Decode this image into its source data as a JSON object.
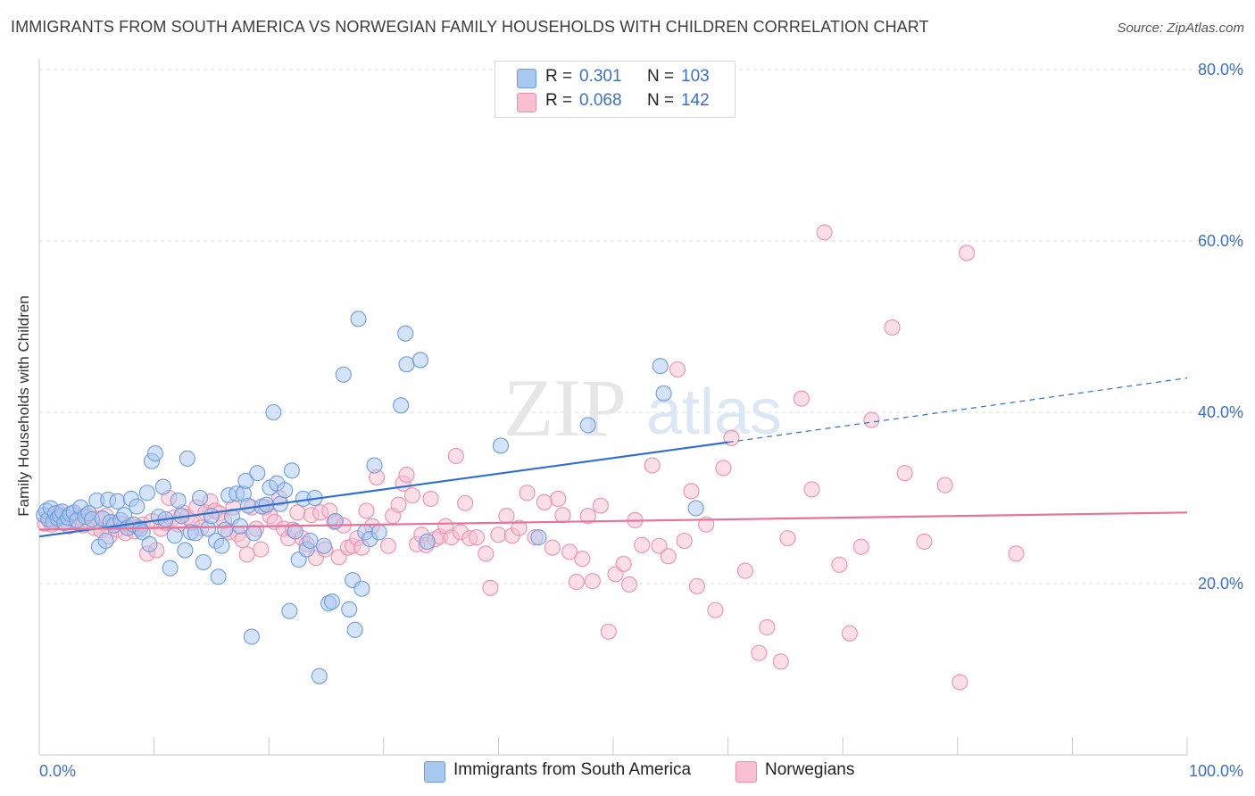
{
  "header": {
    "title": "IMMIGRANTS FROM SOUTH AMERICA VS NORWEGIAN FAMILY HOUSEHOLDS WITH CHILDREN CORRELATION CHART",
    "source": "Source: ZipAtlas.com"
  },
  "watermark": {
    "zip": "ZIP",
    "atlas": "atlas"
  },
  "legend": {
    "r_label": "R =",
    "n_label": "N =",
    "series": [
      {
        "r": "0.301",
        "n": "103"
      },
      {
        "r": "0.068",
        "n": "142"
      }
    ]
  },
  "bottom_legend": {
    "blue_label": "Immigrants from South America",
    "pink_label": "Norwegians"
  },
  "colors": {
    "blue_fill": "#a9c8ef",
    "blue_stroke": "#6b9de0",
    "blue_line": "#2f6fd1",
    "pink_fill": "#f7bfd0",
    "pink_stroke": "#ee8fae",
    "pink_line": "#e8739a",
    "tick_text": "#3a6fd0",
    "grid": "#dddddd"
  },
  "chart_data": {
    "type": "scatter",
    "title": "IMMIGRANTS FROM SOUTH AMERICA VS NORWEGIAN FAMILY HOUSEHOLDS WITH CHILDREN CORRELATION CHART",
    "xlabel": "",
    "ylabel": "Family Households with Children",
    "xlim": [
      0,
      100
    ],
    "ylim": [
      0,
      80
    ],
    "x_tick_labels": [
      "0.0%",
      "100.0%"
    ],
    "y_ticks": [
      20,
      40,
      60,
      80
    ],
    "y_tick_labels": [
      "20.0%",
      "40.0%",
      "60.0%",
      "80.0%"
    ],
    "grid": "horizontal dashed",
    "legend_placement": "top-center",
    "series": [
      {
        "name": "Immigrants from South America",
        "color": "#a9c8ef",
        "trend": {
          "x": [
            0,
            60
          ],
          "y": [
            25.5,
            36.5
          ],
          "extended_to": {
            "x": 100,
            "y": 44.0
          }
        },
        "points": [
          [
            0.4,
            28.0
          ],
          [
            0.6,
            28.5
          ],
          [
            0.8,
            27.5
          ],
          [
            1.0,
            28.8
          ],
          [
            1.2,
            27.2
          ],
          [
            1.4,
            28.2
          ],
          [
            1.6,
            27.6
          ],
          [
            1.8,
            27.9
          ],
          [
            2.0,
            28.4
          ],
          [
            2.2,
            27.1
          ],
          [
            2.5,
            27.7
          ],
          [
            2.7,
            28.1
          ],
          [
            3.0,
            28.3
          ],
          [
            3.3,
            27.4
          ],
          [
            3.6,
            28.9
          ],
          [
            4.0,
            27.8
          ],
          [
            4.3,
            28.2
          ],
          [
            4.6,
            27.5
          ],
          [
            5.0,
            29.7
          ],
          [
            5.2,
            24.3
          ],
          [
            5.5,
            27.6
          ],
          [
            5.8,
            25.0
          ],
          [
            6.0,
            29.8
          ],
          [
            6.2,
            27.2
          ],
          [
            6.5,
            26.8
          ],
          [
            6.8,
            29.6
          ],
          [
            7.1,
            27.4
          ],
          [
            7.4,
            28.0
          ],
          [
            7.7,
            26.5
          ],
          [
            8.0,
            29.9
          ],
          [
            8.2,
            26.9
          ],
          [
            8.5,
            29.0
          ],
          [
            8.8,
            26.4
          ],
          [
            9.0,
            26.0
          ],
          [
            9.4,
            30.6
          ],
          [
            9.6,
            24.6
          ],
          [
            9.8,
            34.3
          ],
          [
            10.1,
            35.2
          ],
          [
            10.4,
            27.8
          ],
          [
            10.8,
            31.3
          ],
          [
            11.0,
            27.5
          ],
          [
            11.4,
            21.8
          ],
          [
            11.8,
            25.6
          ],
          [
            12.1,
            29.7
          ],
          [
            12.4,
            27.9
          ],
          [
            12.7,
            23.9
          ],
          [
            12.9,
            34.6
          ],
          [
            13.2,
            26.0
          ],
          [
            13.6,
            25.9
          ],
          [
            14.0,
            30.0
          ],
          [
            14.3,
            22.5
          ],
          [
            14.7,
            26.4
          ],
          [
            15.0,
            27.9
          ],
          [
            15.4,
            25.0
          ],
          [
            15.6,
            20.8
          ],
          [
            15.9,
            24.4
          ],
          [
            16.2,
            26.3
          ],
          [
            16.5,
            30.3
          ],
          [
            16.8,
            27.8
          ],
          [
            17.2,
            30.5
          ],
          [
            17.5,
            26.7
          ],
          [
            17.8,
            30.5
          ],
          [
            18.0,
            32.0
          ],
          [
            18.2,
            29.1
          ],
          [
            18.5,
            13.8
          ],
          [
            18.7,
            25.9
          ],
          [
            19.0,
            32.9
          ],
          [
            19.4,
            29.0
          ],
          [
            19.8,
            29.2
          ],
          [
            20.1,
            31.2
          ],
          [
            20.4,
            40.0
          ],
          [
            20.7,
            31.7
          ],
          [
            21.0,
            29.3
          ],
          [
            21.4,
            30.9
          ],
          [
            21.8,
            16.8
          ],
          [
            22.0,
            33.2
          ],
          [
            22.3,
            26.1
          ],
          [
            22.6,
            22.8
          ],
          [
            23.0,
            29.9
          ],
          [
            23.3,
            24.0
          ],
          [
            23.6,
            25.0
          ],
          [
            24.0,
            30.0
          ],
          [
            24.4,
            9.2
          ],
          [
            24.8,
            24.4
          ],
          [
            25.2,
            17.7
          ],
          [
            25.5,
            17.9
          ],
          [
            25.8,
            27.3
          ],
          [
            26.5,
            44.4
          ],
          [
            27.0,
            17.0
          ],
          [
            27.3,
            20.4
          ],
          [
            27.5,
            14.6
          ],
          [
            27.8,
            50.9
          ],
          [
            28.1,
            19.4
          ],
          [
            28.4,
            26.0
          ],
          [
            28.8,
            25.2
          ],
          [
            29.2,
            33.8
          ],
          [
            29.6,
            26.0
          ],
          [
            31.5,
            40.8
          ],
          [
            31.9,
            49.2
          ],
          [
            32.0,
            45.6
          ],
          [
            33.2,
            46.1
          ],
          [
            33.8,
            24.9
          ],
          [
            40.2,
            36.1
          ],
          [
            43.5,
            25.4
          ],
          [
            47.8,
            38.5
          ],
          [
            54.1,
            45.4
          ],
          [
            54.4,
            42.2
          ],
          [
            57.2,
            28.8
          ]
        ]
      },
      {
        "name": "Norwegians",
        "color": "#f7bfd0",
        "trend": {
          "x": [
            0,
            100
          ],
          "y": [
            26.3,
            28.3
          ]
        },
        "points": [
          [
            0.5,
            27.0
          ],
          [
            0.8,
            27.9
          ],
          [
            1.1,
            26.9
          ],
          [
            1.4,
            27.4
          ],
          [
            1.7,
            28.3
          ],
          [
            2.0,
            27.1
          ],
          [
            2.3,
            27.8
          ],
          [
            2.6,
            26.7
          ],
          [
            2.9,
            28.1
          ],
          [
            3.2,
            27.3
          ],
          [
            3.5,
            27.7
          ],
          [
            3.8,
            26.8
          ],
          [
            4.1,
            28.0
          ],
          [
            4.4,
            27.2
          ],
          [
            4.8,
            26.5
          ],
          [
            5.1,
            27.6
          ],
          [
            5.4,
            26.2
          ],
          [
            5.8,
            27.9
          ],
          [
            6.1,
            25.5
          ],
          [
            6.4,
            27.1
          ],
          [
            6.8,
            26.3
          ],
          [
            7.2,
            27.0
          ],
          [
            7.5,
            25.9
          ],
          [
            7.9,
            26.8
          ],
          [
            8.3,
            26.1
          ],
          [
            8.6,
            26.6
          ],
          [
            9.0,
            26.9
          ],
          [
            9.4,
            23.5
          ],
          [
            9.8,
            27.3
          ],
          [
            10.2,
            23.9
          ],
          [
            10.6,
            26.4
          ],
          [
            11.0,
            27.1
          ],
          [
            11.3,
            30.0
          ],
          [
            11.7,
            27.7
          ],
          [
            12.1,
            26.9
          ],
          [
            12.5,
            28.3
          ],
          [
            12.9,
            27.8
          ],
          [
            13.3,
            27.1
          ],
          [
            13.7,
            28.9
          ],
          [
            14.1,
            26.5
          ],
          [
            14.5,
            28.3
          ],
          [
            14.9,
            29.6
          ],
          [
            15.3,
            28.5
          ],
          [
            15.7,
            28.2
          ],
          [
            16.1,
            27.3
          ],
          [
            16.5,
            26.0
          ],
          [
            16.9,
            28.9
          ],
          [
            17.3,
            25.8
          ],
          [
            17.7,
            25.1
          ],
          [
            18.1,
            23.4
          ],
          [
            18.5,
            28.9
          ],
          [
            18.9,
            26.4
          ],
          [
            19.3,
            24.0
          ],
          [
            19.7,
            28.9
          ],
          [
            20.1,
            27.9
          ],
          [
            20.5,
            27.2
          ],
          [
            20.9,
            30.0
          ],
          [
            21.3,
            26.4
          ],
          [
            21.7,
            25.3
          ],
          [
            22.1,
            26.3
          ],
          [
            22.5,
            28.3
          ],
          [
            22.9,
            25.3
          ],
          [
            23.3,
            24.6
          ],
          [
            23.7,
            28.0
          ],
          [
            24.1,
            23.0
          ],
          [
            24.5,
            28.3
          ],
          [
            24.9,
            24.0
          ],
          [
            25.3,
            28.5
          ],
          [
            25.7,
            27.2
          ],
          [
            26.1,
            23.1
          ],
          [
            26.5,
            26.8
          ],
          [
            26.9,
            24.2
          ],
          [
            27.3,
            24.4
          ],
          [
            27.7,
            25.3
          ],
          [
            28.1,
            24.2
          ],
          [
            28.5,
            28.5
          ],
          [
            29.0,
            26.7
          ],
          [
            29.4,
            32.4
          ],
          [
            30.4,
            24.4
          ],
          [
            30.8,
            27.9
          ],
          [
            31.3,
            29.2
          ],
          [
            31.7,
            31.7
          ],
          [
            32.0,
            32.7
          ],
          [
            32.5,
            30.3
          ],
          [
            32.9,
            24.6
          ],
          [
            33.3,
            25.7
          ],
          [
            33.7,
            24.5
          ],
          [
            34.1,
            29.9
          ],
          [
            34.5,
            25.2
          ],
          [
            34.9,
            25.5
          ],
          [
            35.4,
            26.7
          ],
          [
            35.9,
            25.4
          ],
          [
            36.3,
            34.9
          ],
          [
            36.7,
            26.0
          ],
          [
            37.1,
            29.4
          ],
          [
            37.5,
            25.3
          ],
          [
            38.1,
            25.4
          ],
          [
            38.9,
            23.5
          ],
          [
            39.3,
            19.5
          ],
          [
            40.0,
            25.7
          ],
          [
            40.7,
            27.9
          ],
          [
            41.2,
            25.6
          ],
          [
            41.8,
            26.5
          ],
          [
            42.5,
            30.6
          ],
          [
            43.2,
            25.4
          ],
          [
            44.0,
            29.5
          ],
          [
            44.7,
            24.2
          ],
          [
            45.2,
            29.9
          ],
          [
            45.6,
            28.0
          ],
          [
            46.2,
            23.7
          ],
          [
            46.8,
            20.2
          ],
          [
            47.3,
            22.9
          ],
          [
            47.8,
            27.9
          ],
          [
            48.2,
            20.3
          ],
          [
            48.9,
            29.1
          ],
          [
            49.6,
            14.4
          ],
          [
            50.2,
            21.1
          ],
          [
            50.9,
            22.3
          ],
          [
            51.4,
            19.9
          ],
          [
            51.9,
            27.4
          ],
          [
            52.5,
            24.5
          ],
          [
            53.4,
            33.8
          ],
          [
            54.0,
            24.4
          ],
          [
            54.8,
            23.2
          ],
          [
            55.6,
            45.0
          ],
          [
            56.2,
            25.0
          ],
          [
            56.8,
            30.8
          ],
          [
            57.3,
            19.7
          ],
          [
            58.1,
            26.9
          ],
          [
            58.9,
            16.9
          ],
          [
            59.6,
            33.5
          ],
          [
            60.3,
            37.0
          ],
          [
            61.5,
            21.5
          ],
          [
            62.7,
            11.9
          ],
          [
            63.4,
            14.9
          ],
          [
            64.6,
            10.9
          ],
          [
            65.2,
            25.3
          ],
          [
            66.4,
            41.6
          ],
          [
            67.3,
            31.0
          ],
          [
            68.4,
            61.0
          ],
          [
            69.7,
            22.2
          ],
          [
            70.6,
            14.2
          ],
          [
            71.6,
            24.3
          ],
          [
            72.5,
            39.1
          ],
          [
            74.3,
            49.9
          ],
          [
            75.4,
            32.9
          ],
          [
            77.1,
            24.9
          ],
          [
            78.9,
            31.5
          ],
          [
            80.2,
            8.5
          ],
          [
            80.8,
            58.6
          ],
          [
            85.1,
            23.5
          ]
        ]
      }
    ]
  }
}
